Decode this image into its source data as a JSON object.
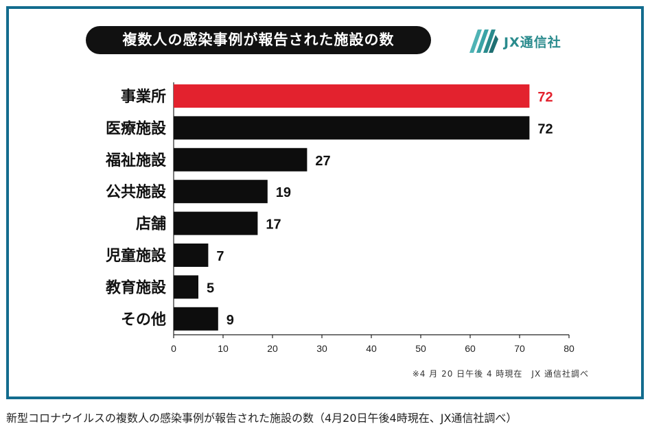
{
  "chart_data": {
    "type": "bar",
    "orientation": "horizontal",
    "title": "複数人の感染事例が報告された施設の数",
    "categories": [
      "事業所",
      "医療施設",
      "福祉施設",
      "公共施設",
      "店舗",
      "児童施設",
      "教育施設",
      "その他"
    ],
    "values": [
      72,
      72,
      27,
      19,
      17,
      7,
      5,
      9
    ],
    "xlim": [
      0,
      80
    ],
    "xticks": [
      0,
      10,
      20,
      30,
      40,
      50,
      60,
      70,
      80
    ],
    "grid": false,
    "colors": {
      "highlight": "#e3222e",
      "bar": "#0d0d0d",
      "highlight_label": "#e3222e",
      "label": "#111111"
    },
    "highlight_index": 0
  },
  "brand": {
    "name": "JX通信社",
    "icon": "jx-logo-icon",
    "color": "#2a8b8d"
  },
  "note": "※4 月 20 日午後 4 時現在　JX 通信社調べ",
  "caption": "新型コロナウイルスの複数人の感染事例が報告された施設の数（4月20日午後4時現在、JX通信社調べ）",
  "frame_color": "#136c8e"
}
